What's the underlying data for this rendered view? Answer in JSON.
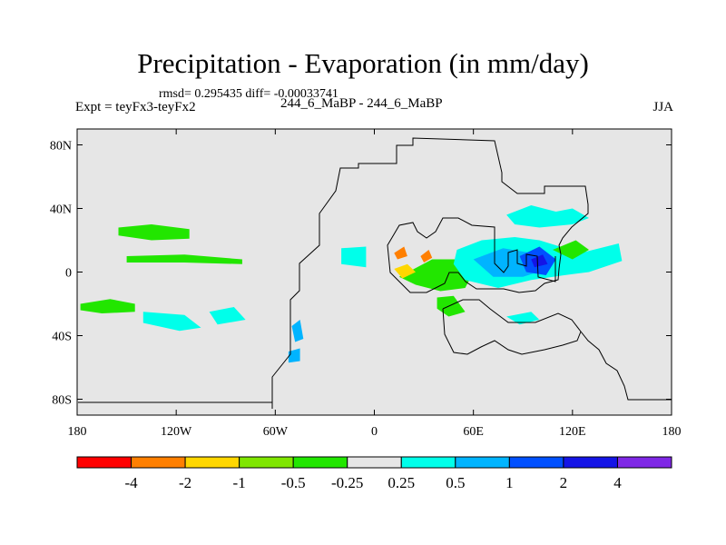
{
  "header": {
    "title": "Precipitation - Evaporation (in mm/day)",
    "stats": "rmsd= 0.295435 diff= -0.00033741",
    "experiment": "Expt = teyFx3-teyFx2",
    "models": "244_6_MaBP - 244_6_MaBP",
    "season": "JJA"
  },
  "colors": {
    "ocean_background": "#e6e6e6",
    "coastline": "#000000",
    "bins": [
      "#ff0000",
      "#ff7f00",
      "#ffd700",
      "#7fe600",
      "#22e600",
      "#e6e6e6",
      "#00ffea",
      "#00b4ff",
      "#0050ff",
      "#1414e6",
      "#7f28e6"
    ]
  },
  "chart_data": {
    "type": "contour-map",
    "title": "Precipitation - Evaporation (in mm/day)",
    "projection": "cylindrical-equidistant",
    "x_axis": {
      "range": [
        -180,
        180
      ],
      "ticks": [
        {
          "value": -180,
          "label": "180"
        },
        {
          "value": -120,
          "label": "120W"
        },
        {
          "value": -60,
          "label": "60W"
        },
        {
          "value": 0,
          "label": "0"
        },
        {
          "value": 60,
          "label": "60E"
        },
        {
          "value": 120,
          "label": "120E"
        },
        {
          "value": 180,
          "label": "180"
        }
      ]
    },
    "y_axis": {
      "range": [
        -90,
        90
      ],
      "ticks": [
        {
          "value": 80,
          "label": "80N"
        },
        {
          "value": 40,
          "label": "40N"
        },
        {
          "value": 0,
          "label": "0"
        },
        {
          "value": -40,
          "label": "40S"
        },
        {
          "value": -80,
          "label": "80S"
        }
      ]
    },
    "colorbar": {
      "levels": [
        "-4",
        "-2",
        "-1",
        "-0.5",
        "-0.25",
        "0.25",
        "0.5",
        "1",
        "2",
        "4"
      ],
      "units": "mm/day"
    },
    "features": [
      {
        "name": "north-pacific-drying-band",
        "bin": 4,
        "points": [
          [
            -155,
            28
          ],
          [
            -135,
            30
          ],
          [
            -112,
            27
          ],
          [
            -112,
            21
          ],
          [
            -135,
            20
          ],
          [
            -155,
            23
          ]
        ]
      },
      {
        "name": "tropical-pacific-drying-band",
        "bin": 4,
        "points": [
          [
            -150,
            10
          ],
          [
            -115,
            11
          ],
          [
            -80,
            8
          ],
          [
            -80,
            5
          ],
          [
            -115,
            6
          ],
          [
            -150,
            6
          ]
        ]
      },
      {
        "name": "south-pacific-drying-band",
        "bin": 4,
        "points": [
          [
            -178,
            -20
          ],
          [
            -160,
            -17
          ],
          [
            -145,
            -20
          ],
          [
            -145,
            -25
          ],
          [
            -165,
            -26
          ],
          [
            -178,
            -24
          ]
        ]
      },
      {
        "name": "south-pacific-wetting-band",
        "bin": 6,
        "points": [
          [
            -140,
            -25
          ],
          [
            -115,
            -27
          ],
          [
            -105,
            -35
          ],
          [
            -118,
            -37
          ],
          [
            -140,
            -32
          ]
        ]
      },
      {
        "name": "southeast-pacific-wetting",
        "bin": 6,
        "points": [
          [
            -100,
            -25
          ],
          [
            -85,
            -22
          ],
          [
            -78,
            -30
          ],
          [
            -95,
            -33
          ]
        ]
      },
      {
        "name": "central-africa-drying",
        "bin": 4,
        "points": [
          [
            15,
            -3
          ],
          [
            35,
            8
          ],
          [
            55,
            8
          ],
          [
            60,
            0
          ],
          [
            55,
            -10
          ],
          [
            40,
            -12
          ],
          [
            25,
            -8
          ]
        ]
      },
      {
        "name": "africa-orange-spot",
        "bin": 1,
        "points": [
          [
            12,
            12
          ],
          [
            18,
            16
          ],
          [
            20,
            10
          ],
          [
            14,
            8
          ]
        ]
      },
      {
        "name": "africa-orange-spot-2",
        "bin": 1,
        "points": [
          [
            28,
            10
          ],
          [
            33,
            14
          ],
          [
            35,
            9
          ],
          [
            30,
            6
          ]
        ]
      },
      {
        "name": "west-africa-yellow",
        "bin": 2,
        "points": [
          [
            12,
            2
          ],
          [
            20,
            5
          ],
          [
            25,
            0
          ],
          [
            17,
            -4
          ]
        ]
      },
      {
        "name": "east-africa-drying",
        "bin": 4,
        "points": [
          [
            38,
            -16
          ],
          [
            48,
            -15
          ],
          [
            55,
            -25
          ],
          [
            45,
            -28
          ],
          [
            38,
            -23
          ]
        ]
      },
      {
        "name": "atlantic-wetting",
        "bin": 6,
        "points": [
          [
            -20,
            15
          ],
          [
            -5,
            16
          ],
          [
            -5,
            3
          ],
          [
            -20,
            5
          ]
        ]
      },
      {
        "name": "indian-ocean-wetting",
        "bin": 6,
        "points": [
          [
            50,
            14
          ],
          [
            65,
            20
          ],
          [
            85,
            22
          ],
          [
            100,
            20
          ],
          [
            125,
            12
          ],
          [
            148,
            18
          ],
          [
            150,
            7
          ],
          [
            130,
            0
          ],
          [
            115,
            -2
          ],
          [
            95,
            -5
          ],
          [
            75,
            -10
          ],
          [
            55,
            -5
          ],
          [
            48,
            5
          ]
        ]
      },
      {
        "name": "indian-ocean-wetting-strong",
        "bin": 7,
        "points": [
          [
            60,
            8
          ],
          [
            78,
            15
          ],
          [
            95,
            12
          ],
          [
            105,
            2
          ],
          [
            90,
            -3
          ],
          [
            72,
            -3
          ]
        ]
      },
      {
        "name": "maritime-continent-strong",
        "bin": 8,
        "points": [
          [
            88,
            10
          ],
          [
            100,
            16
          ],
          [
            110,
            8
          ],
          [
            104,
            -2
          ],
          [
            92,
            0
          ]
        ]
      },
      {
        "name": "maritime-continent-peak",
        "bin": 9,
        "points": [
          [
            95,
            8
          ],
          [
            102,
            11
          ],
          [
            105,
            5
          ],
          [
            97,
            3
          ]
        ]
      },
      {
        "name": "east-asia-wetting",
        "bin": 6,
        "points": [
          [
            80,
            36
          ],
          [
            95,
            42
          ],
          [
            110,
            38
          ],
          [
            120,
            40
          ],
          [
            130,
            34
          ],
          [
            120,
            30
          ],
          [
            100,
            28
          ],
          [
            85,
            30
          ]
        ]
      },
      {
        "name": "bay-of-bengal-drying",
        "bin": 4,
        "points": [
          [
            108,
            14
          ],
          [
            122,
            20
          ],
          [
            130,
            14
          ],
          [
            120,
            8
          ]
        ]
      },
      {
        "name": "south-indian-wetting",
        "bin": 6,
        "points": [
          [
            80,
            -28
          ],
          [
            95,
            -25
          ],
          [
            100,
            -30
          ],
          [
            88,
            -33
          ]
        ]
      },
      {
        "name": "andes-wetting",
        "bin": 7,
        "points": [
          [
            -50,
            -34
          ],
          [
            -45,
            -30
          ],
          [
            -43,
            -42
          ],
          [
            -48,
            -44
          ]
        ]
      },
      {
        "name": "southern-ocean-wetting",
        "bin": 7,
        "points": [
          [
            -52,
            -50
          ],
          [
            -45,
            -48
          ],
          [
            -45,
            -56
          ],
          [
            -52,
            -57
          ]
        ]
      }
    ]
  }
}
